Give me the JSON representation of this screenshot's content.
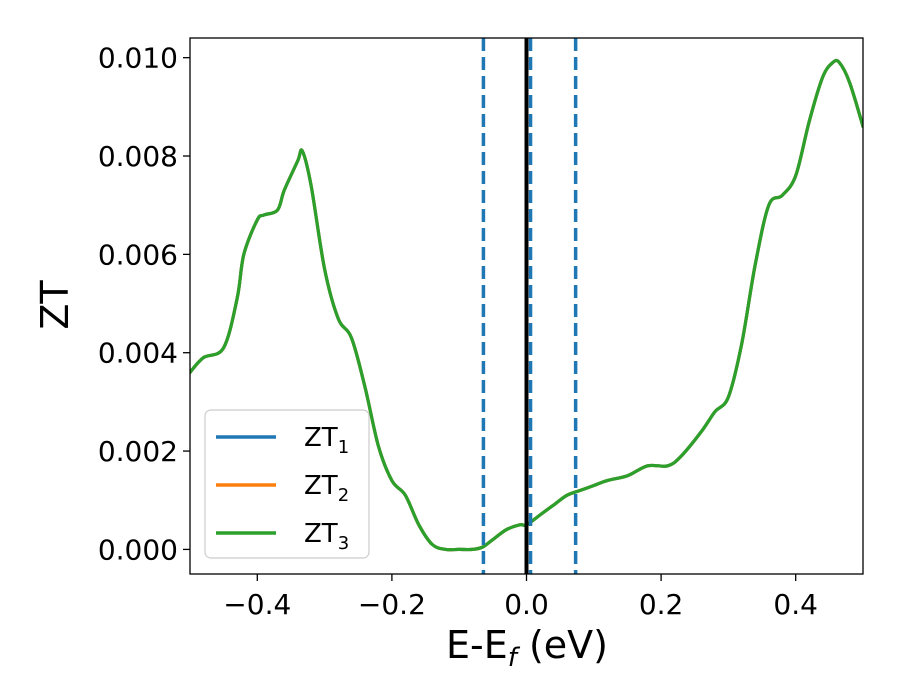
{
  "chart_data": {
    "type": "line",
    "xlabel": {
      "main": "E-E",
      "sub": "f",
      "suffix": " (eV)"
    },
    "ylabel": "ZT",
    "xlim": [
      -0.5,
      0.5
    ],
    "ylim": [
      -0.0005,
      0.0104
    ],
    "x_ticks": [
      -0.4,
      -0.2,
      0.0,
      0.2,
      0.4
    ],
    "x_tick_labels": [
      "−0.4",
      "−0.2",
      "0.0",
      "0.2",
      "0.4"
    ],
    "y_ticks": [
      0.0,
      0.002,
      0.004,
      0.006,
      0.008,
      0.01
    ],
    "y_tick_labels": [
      "0.000",
      "0.002",
      "0.004",
      "0.006",
      "0.008",
      "0.010"
    ],
    "grid": false,
    "legend_position": "lower-left",
    "x": [
      -0.5,
      -0.48,
      -0.45,
      -0.43,
      -0.42,
      -0.4,
      -0.39,
      -0.37,
      -0.36,
      -0.34,
      -0.333,
      -0.32,
      -0.3,
      -0.28,
      -0.26,
      -0.24,
      -0.22,
      -0.2,
      -0.18,
      -0.16,
      -0.14,
      -0.12,
      -0.1,
      -0.08,
      -0.065,
      -0.05,
      -0.03,
      -0.01,
      0.0,
      0.02,
      0.04,
      0.06,
      0.08,
      0.1,
      0.12,
      0.15,
      0.18,
      0.21,
      0.23,
      0.26,
      0.28,
      0.3,
      0.32,
      0.34,
      0.36,
      0.38,
      0.4,
      0.42,
      0.44,
      0.455,
      0.465,
      0.48,
      0.5
    ],
    "series": [
      {
        "name": {
          "main": "ZT",
          "sub": "1"
        },
        "color": "#1f77b4",
        "values": [
          0.0036,
          0.0039,
          0.0041,
          0.0051,
          0.006,
          0.0067,
          0.0068,
          0.0069,
          0.0073,
          0.0079,
          0.0081,
          0.0074,
          0.0057,
          0.0047,
          0.0043,
          0.0033,
          0.0021,
          0.0014,
          0.0011,
          0.0005,
          0.0001,
          0.0,
          0.0,
          0.0,
          5e-05,
          0.0002,
          0.0004,
          0.0005,
          0.0005,
          0.0007,
          0.0009,
          0.0011,
          0.0012,
          0.0013,
          0.0014,
          0.0015,
          0.0017,
          0.0017,
          0.0019,
          0.0024,
          0.0028,
          0.0031,
          0.0042,
          0.0058,
          0.007,
          0.0072,
          0.0076,
          0.0087,
          0.0096,
          0.0099,
          0.0099,
          0.0095,
          0.0086
        ]
      },
      {
        "name": {
          "main": "ZT",
          "sub": "2"
        },
        "color": "#ff7f0e",
        "values": [
          0.0036,
          0.0039,
          0.0041,
          0.0051,
          0.006,
          0.0067,
          0.0068,
          0.0069,
          0.0073,
          0.0079,
          0.0081,
          0.0074,
          0.0057,
          0.0047,
          0.0043,
          0.0033,
          0.0021,
          0.0014,
          0.0011,
          0.0005,
          0.0001,
          0.0,
          0.0,
          0.0,
          5e-05,
          0.0002,
          0.0004,
          0.0005,
          0.0005,
          0.0007,
          0.0009,
          0.0011,
          0.0012,
          0.0013,
          0.0014,
          0.0015,
          0.0017,
          0.0017,
          0.0019,
          0.0024,
          0.0028,
          0.0031,
          0.0042,
          0.0058,
          0.007,
          0.0072,
          0.0076,
          0.0087,
          0.0096,
          0.0099,
          0.0099,
          0.0095,
          0.0086
        ]
      },
      {
        "name": {
          "main": "ZT",
          "sub": "3"
        },
        "color": "#2ca02c",
        "values": [
          0.0036,
          0.0039,
          0.0041,
          0.0051,
          0.006,
          0.0067,
          0.0068,
          0.0069,
          0.0073,
          0.0079,
          0.0081,
          0.0074,
          0.0057,
          0.0047,
          0.0043,
          0.0033,
          0.0021,
          0.0014,
          0.0011,
          0.0005,
          0.0001,
          0.0,
          0.0,
          0.0,
          5e-05,
          0.0002,
          0.0004,
          0.0005,
          0.0005,
          0.0007,
          0.0009,
          0.0011,
          0.0012,
          0.0013,
          0.0014,
          0.0015,
          0.0017,
          0.0017,
          0.0019,
          0.0024,
          0.0028,
          0.0031,
          0.0042,
          0.0058,
          0.007,
          0.0072,
          0.0076,
          0.0087,
          0.0096,
          0.0099,
          0.0099,
          0.0095,
          0.0086
        ]
      }
    ],
    "vertical_lines": [
      {
        "x": -0.064,
        "style": "dashed",
        "color": "#1f77b4"
      },
      {
        "x": 0.006,
        "style": "dashed",
        "color": "#1f77b4"
      },
      {
        "x": 0.073,
        "style": "dashed",
        "color": "#1f77b4"
      },
      {
        "x": 0.0,
        "style": "solid",
        "color": "#000000"
      }
    ]
  }
}
